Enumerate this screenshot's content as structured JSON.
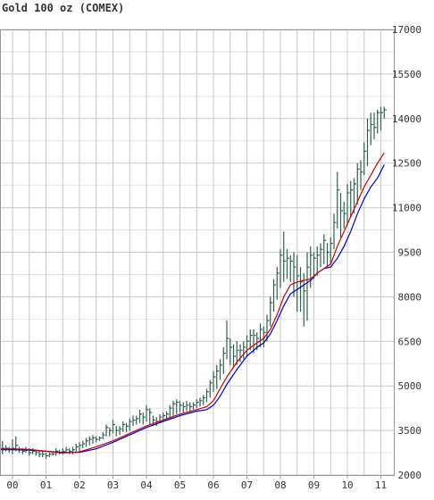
{
  "chart_data": {
    "type": "line",
    "title": "Gold 100 oz (COMEX)",
    "x_tick_labels": [
      "00",
      "01",
      "02",
      "03",
      "04",
      "05",
      "06",
      "07",
      "08",
      "09",
      "10",
      "11"
    ],
    "y_tick_labels": [
      "2000",
      "3500",
      "5000",
      "6500",
      "8000",
      "9500",
      "11000",
      "12500",
      "14000",
      "15500",
      "17000"
    ],
    "ylim": [
      2000,
      17000
    ],
    "xlim": [
      -0.5,
      11.3
    ],
    "grid": true,
    "colors": {
      "price": "#2f5f4f",
      "ma_fast": "#cc0000",
      "ma_slow": "#0000cc",
      "grid": "#c8c8c8",
      "axis": "#999999"
    },
    "series": [
      {
        "values": [
          [
            -0.5,
            2550,
            3200,
            2800
          ],
          [
            -0.4,
            2600,
            3300,
            2900
          ],
          [
            -0.3,
            2700,
            3150,
            2900
          ],
          [
            -0.2,
            2800,
            3000,
            2900
          ],
          [
            -0.1,
            2750,
            2950,
            2850
          ],
          [
            0.0,
            2700,
            3200,
            2900
          ],
          [
            0.1,
            2800,
            3300,
            3000
          ],
          [
            0.2,
            2750,
            2950,
            2850
          ],
          [
            0.3,
            2700,
            2900,
            2800
          ],
          [
            0.4,
            2750,
            2950,
            2850
          ],
          [
            0.5,
            2650,
            2900,
            2750
          ],
          [
            0.6,
            2700,
            2900,
            2800
          ],
          [
            0.7,
            2650,
            2850,
            2750
          ],
          [
            0.8,
            2600,
            2800,
            2700
          ],
          [
            0.9,
            2600,
            2800,
            2700
          ],
          [
            1.0,
            2550,
            2750,
            2650
          ],
          [
            1.1,
            2600,
            2750,
            2700
          ],
          [
            1.2,
            2650,
            2800,
            2700
          ],
          [
            1.3,
            2650,
            2900,
            2800
          ],
          [
            1.4,
            2700,
            2850,
            2750
          ],
          [
            1.5,
            2700,
            2900,
            2800
          ],
          [
            1.6,
            2750,
            2950,
            2850
          ],
          [
            1.7,
            2700,
            2900,
            2800
          ],
          [
            1.8,
            2700,
            2950,
            2850
          ],
          [
            1.9,
            2800,
            3050,
            2950
          ],
          [
            2.0,
            2800,
            3100,
            3000
          ],
          [
            2.1,
            2900,
            3150,
            3050
          ],
          [
            2.2,
            2950,
            3250,
            3150
          ],
          [
            2.3,
            3000,
            3300,
            3200
          ],
          [
            2.4,
            3050,
            3350,
            3250
          ],
          [
            2.5,
            3100,
            3300,
            3200
          ],
          [
            2.6,
            3150,
            3300,
            3250
          ],
          [
            2.7,
            3200,
            3450,
            3350
          ],
          [
            2.8,
            3300,
            3700,
            3600
          ],
          [
            2.9,
            3300,
            3600,
            3500
          ],
          [
            3.0,
            3400,
            3850,
            3700
          ],
          [
            3.1,
            3300,
            3650,
            3500
          ],
          [
            3.2,
            3350,
            3650,
            3550
          ],
          [
            3.3,
            3450,
            3800,
            3700
          ],
          [
            3.4,
            3450,
            3750,
            3650
          ],
          [
            3.5,
            3500,
            3900,
            3800
          ],
          [
            3.6,
            3650,
            4000,
            3850
          ],
          [
            3.7,
            3700,
            4000,
            3900
          ],
          [
            3.8,
            3750,
            4200,
            4050
          ],
          [
            3.9,
            3700,
            4100,
            3950
          ],
          [
            4.0,
            3800,
            4350,
            4200
          ],
          [
            4.1,
            3700,
            4250,
            4100
          ],
          [
            4.2,
            3650,
            4000,
            3850
          ],
          [
            4.3,
            3650,
            3950,
            3800
          ],
          [
            4.4,
            3750,
            4050,
            3950
          ],
          [
            4.5,
            3800,
            4100,
            4000
          ],
          [
            4.6,
            3850,
            4150,
            4050
          ],
          [
            4.7,
            3900,
            4350,
            4250
          ],
          [
            4.8,
            4000,
            4500,
            4400
          ],
          [
            4.9,
            4050,
            4550,
            4450
          ],
          [
            5.0,
            4100,
            4500,
            4350
          ],
          [
            5.1,
            4100,
            4450,
            4300
          ],
          [
            5.2,
            4150,
            4500,
            4350
          ],
          [
            5.3,
            4150,
            4450,
            4300
          ],
          [
            5.4,
            4200,
            4450,
            4350
          ],
          [
            5.5,
            4250,
            4550,
            4450
          ],
          [
            5.6,
            4300,
            4600,
            4500
          ],
          [
            5.7,
            4350,
            4700,
            4600
          ],
          [
            5.8,
            4450,
            4900,
            4800
          ],
          [
            5.9,
            4600,
            5200,
            5100
          ],
          [
            6.0,
            4800,
            5500,
            5300
          ],
          [
            6.1,
            4900,
            5700,
            5500
          ],
          [
            6.2,
            5200,
            5900,
            5700
          ],
          [
            6.3,
            5400,
            6300,
            6100
          ],
          [
            6.4,
            5900,
            7200,
            6600
          ],
          [
            6.5,
            5700,
            6600,
            6300
          ],
          [
            6.6,
            5600,
            6400,
            6000
          ],
          [
            6.7,
            5700,
            6500,
            6200
          ],
          [
            6.8,
            5800,
            6400,
            6200
          ],
          [
            6.9,
            5900,
            6500,
            6300
          ],
          [
            7.0,
            6000,
            6700,
            6500
          ],
          [
            7.1,
            6200,
            6900,
            6700
          ],
          [
            7.2,
            6100,
            6900,
            6700
          ],
          [
            7.3,
            6200,
            6800,
            6600
          ],
          [
            7.4,
            6300,
            7100,
            6900
          ],
          [
            7.5,
            6300,
            7000,
            6800
          ],
          [
            7.6,
            6500,
            7400,
            7200
          ],
          [
            7.7,
            7000,
            8000,
            7800
          ],
          [
            7.8,
            7500,
            8600,
            8400
          ],
          [
            7.9,
            7900,
            9000,
            8800
          ],
          [
            8.0,
            8300,
            9600,
            9400
          ],
          [
            8.1,
            8500,
            10200,
            9200
          ],
          [
            8.2,
            8600,
            9600,
            9300
          ],
          [
            8.3,
            8500,
            9400,
            9200
          ],
          [
            8.4,
            8000,
            9500,
            9000
          ],
          [
            8.5,
            7500,
            9400,
            8700
          ],
          [
            8.6,
            7500,
            9000,
            8500
          ],
          [
            8.7,
            7000,
            8800,
            8200
          ],
          [
            8.8,
            7200,
            9500,
            9000
          ],
          [
            8.9,
            8300,
            9700,
            9400
          ],
          [
            9.0,
            8600,
            9500,
            9300
          ],
          [
            9.1,
            8700,
            9700,
            9400
          ],
          [
            9.2,
            9000,
            9800,
            9600
          ],
          [
            9.3,
            9100,
            10100,
            9900
          ],
          [
            9.4,
            9000,
            9800,
            9500
          ],
          [
            9.5,
            9100,
            10000,
            9800
          ],
          [
            9.6,
            9600,
            10800,
            10500
          ],
          [
            9.7,
            10300,
            12200,
            11600
          ],
          [
            9.8,
            10000,
            11500,
            10900
          ],
          [
            9.9,
            10300,
            11200,
            10800
          ],
          [
            10.0,
            10400,
            11800,
            11500
          ],
          [
            10.1,
            10700,
            11900,
            11600
          ],
          [
            10.2,
            10800,
            12000,
            11800
          ],
          [
            10.3,
            11100,
            12500,
            12300
          ],
          [
            10.4,
            11600,
            12600,
            12200
          ],
          [
            10.5,
            12100,
            13200,
            12900
          ],
          [
            10.6,
            12400,
            14000,
            13600
          ],
          [
            10.7,
            13100,
            14200,
            13800
          ],
          [
            10.8,
            13300,
            14200,
            13700
          ],
          [
            10.9,
            13500,
            14300,
            14200
          ],
          [
            11.0,
            13600,
            14400,
            14200
          ],
          [
            11.1,
            14000,
            14400,
            14300
          ]
        ]
      },
      {
        "values": [
          [
            -0.5,
            2880
          ],
          [
            0.0,
            2880
          ],
          [
            0.5,
            2860
          ],
          [
            1.0,
            2800
          ],
          [
            1.5,
            2740
          ],
          [
            2.0,
            2780
          ],
          [
            2.5,
            2950
          ],
          [
            3.0,
            3150
          ],
          [
            3.5,
            3400
          ],
          [
            4.0,
            3650
          ],
          [
            4.5,
            3850
          ],
          [
            5.0,
            4050
          ],
          [
            5.5,
            4200
          ],
          [
            5.8,
            4300
          ],
          [
            6.0,
            4500
          ],
          [
            6.2,
            4900
          ],
          [
            6.4,
            5300
          ],
          [
            6.7,
            5800
          ],
          [
            7.0,
            6200
          ],
          [
            7.3,
            6450
          ],
          [
            7.5,
            6600
          ],
          [
            7.7,
            6900
          ],
          [
            7.9,
            7400
          ],
          [
            8.1,
            8000
          ],
          [
            8.3,
            8400
          ],
          [
            8.5,
            8500
          ],
          [
            8.7,
            8550
          ],
          [
            8.9,
            8600
          ],
          [
            9.1,
            8800
          ],
          [
            9.3,
            8950
          ],
          [
            9.5,
            9100
          ],
          [
            9.7,
            9700
          ],
          [
            9.9,
            10200
          ],
          [
            10.1,
            10700
          ],
          [
            10.3,
            11200
          ],
          [
            10.5,
            11700
          ],
          [
            10.7,
            12100
          ],
          [
            10.9,
            12500
          ],
          [
            11.1,
            12850
          ]
        ]
      },
      {
        "values": [
          [
            -0.5,
            2850
          ],
          [
            0.0,
            2850
          ],
          [
            0.5,
            2840
          ],
          [
            1.0,
            2800
          ],
          [
            1.5,
            2760
          ],
          [
            2.0,
            2760
          ],
          [
            2.5,
            2880
          ],
          [
            3.0,
            3100
          ],
          [
            3.5,
            3350
          ],
          [
            4.0,
            3600
          ],
          [
            4.5,
            3800
          ],
          [
            5.0,
            4000
          ],
          [
            5.5,
            4150
          ],
          [
            5.8,
            4200
          ],
          [
            6.0,
            4350
          ],
          [
            6.2,
            4650
          ],
          [
            6.4,
            5050
          ],
          [
            6.7,
            5550
          ],
          [
            7.0,
            6000
          ],
          [
            7.3,
            6300
          ],
          [
            7.5,
            6450
          ],
          [
            7.7,
            6750
          ],
          [
            7.9,
            7200
          ],
          [
            8.1,
            7700
          ],
          [
            8.3,
            8100
          ],
          [
            8.5,
            8250
          ],
          [
            8.7,
            8400
          ],
          [
            8.9,
            8550
          ],
          [
            9.1,
            8800
          ],
          [
            9.3,
            8950
          ],
          [
            9.5,
            9000
          ],
          [
            9.7,
            9300
          ],
          [
            9.9,
            9700
          ],
          [
            10.1,
            10200
          ],
          [
            10.3,
            10800
          ],
          [
            10.5,
            11300
          ],
          [
            10.7,
            11700
          ],
          [
            10.9,
            12000
          ],
          [
            11.1,
            12450
          ]
        ]
      }
    ]
  }
}
